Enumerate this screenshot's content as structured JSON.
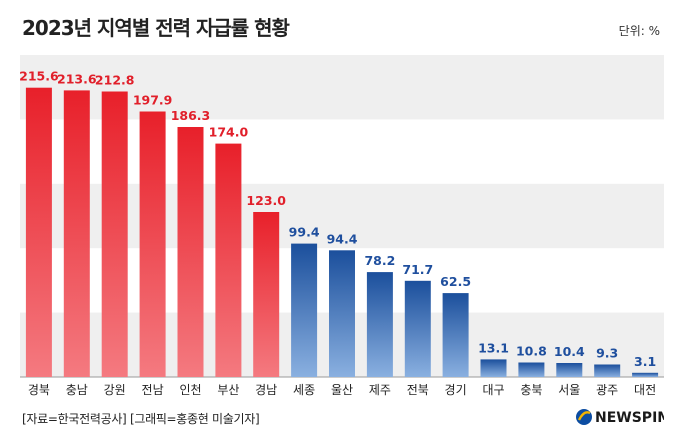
{
  "header": {
    "title": "2023년 지역별 전력 자급률 현황",
    "unit": "단위: %"
  },
  "footer": {
    "source": "[자료=한국전력공사] [그래픽=홍종현 미술기자]",
    "logo_text": "NEWSPIM"
  },
  "colors": {
    "red_top": "#e8202a",
    "red_bottom": "#f47a80",
    "blue_top": "#1b4f9c",
    "blue_bottom": "#8ab0e0",
    "red_label": "#e11f2a",
    "blue_label": "#1f4f9e",
    "band": "#efefef",
    "logo_accent": "#0c4da2"
  },
  "chart_data": {
    "type": "bar",
    "title": "2023년 지역별 전력 자급률 현황",
    "xlabel": "",
    "ylabel": "",
    "unit": "%",
    "ylim": [
      0,
      240
    ],
    "categories": [
      "경북",
      "충남",
      "강원",
      "전남",
      "인천",
      "부산",
      "경남",
      "세종",
      "울산",
      "제주",
      "전북",
      "경기",
      "대구",
      "충북",
      "서울",
      "광주",
      "대전"
    ],
    "values": [
      215.6,
      213.6,
      212.8,
      197.9,
      186.3,
      174.0,
      123.0,
      99.4,
      94.4,
      78.2,
      71.7,
      62.5,
      13.1,
      10.8,
      10.4,
      9.3,
      3.1
    ],
    "labels": [
      "215.6",
      "213.6",
      "212.8",
      "197.9",
      "186.3",
      "174.0",
      "123.0",
      "99.4",
      "94.4",
      "78.2",
      "71.7",
      "62.5",
      "13.1",
      "10.8",
      "10.4",
      "9.3",
      "3.1"
    ],
    "group_threshold": 100,
    "grid": false
  }
}
